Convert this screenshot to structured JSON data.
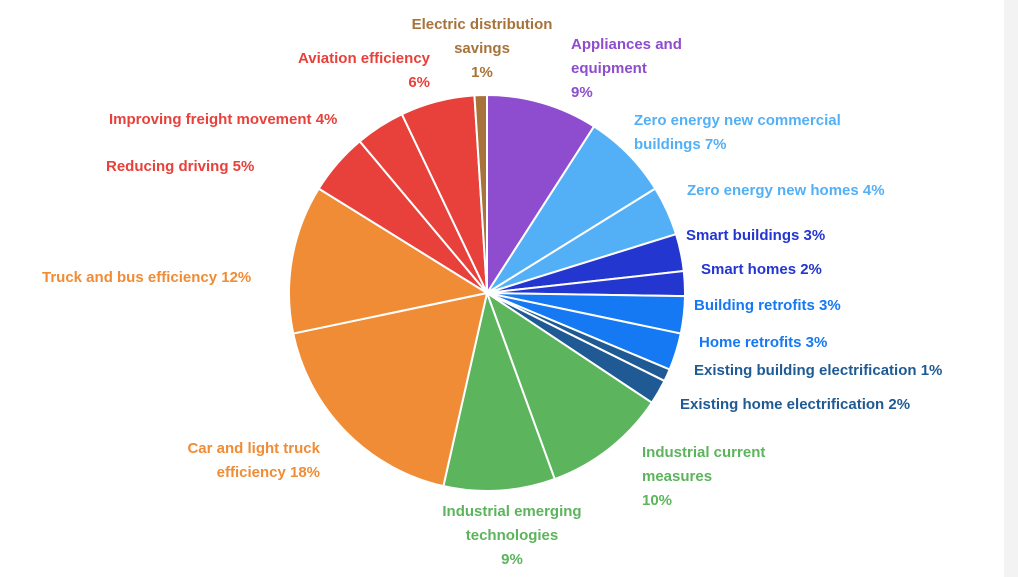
{
  "chart_data": {
    "type": "pie",
    "unit": "%",
    "slices": [
      {
        "label": "Appliances and\nequipment\n9%",
        "name": "Appliances and equipment",
        "value": 9,
        "color": "#8e4ccf"
      },
      {
        "label": "Zero energy new commercial\nbuildings 7%",
        "name": "Zero energy new commercial buildings",
        "value": 7,
        "color": "#53b0f6"
      },
      {
        "label": "Zero energy new homes 4%",
        "name": "Zero energy new homes",
        "value": 4,
        "color": "#53b0f6"
      },
      {
        "label": "Smart buildings 3%",
        "name": "Smart buildings",
        "value": 3,
        "color": "#2436d0"
      },
      {
        "label": "Smart homes 2%",
        "name": "Smart homes",
        "value": 2,
        "color": "#2436d0"
      },
      {
        "label": "Building retrofits 3%",
        "name": "Building retrofits",
        "value": 3,
        "color": "#1479f2"
      },
      {
        "label": "Home retrofits 3%",
        "name": "Home retrofits",
        "value": 3,
        "color": "#1479f2"
      },
      {
        "label": "Existing building electrification 1%",
        "name": "Existing building electrification",
        "value": 1,
        "color": "#1f5a94"
      },
      {
        "label": "Existing home electrification 2%",
        "name": "Existing home electrification",
        "value": 2,
        "color": "#1f5a94"
      },
      {
        "label": "Industrial current\nmeasures\n10%",
        "name": "Industrial current measures",
        "value": 10,
        "color": "#5cb45d"
      },
      {
        "label": "Industrial emerging\ntechnologies\n9%",
        "name": "Industrial emerging technologies",
        "value": 9,
        "color": "#5cb45d"
      },
      {
        "label": "Car and light truck\nefficiency 18%",
        "name": "Car and light truck efficiency",
        "value": 18,
        "color": "#f08c35"
      },
      {
        "label": "Truck and bus efficiency 12%",
        "name": "Truck and bus efficiency",
        "value": 12,
        "color": "#f08c35"
      },
      {
        "label": "Reducing driving 5%",
        "name": "Reducing driving",
        "value": 5,
        "color": "#e8403a"
      },
      {
        "label": "Improving freight movement 4%",
        "name": "Improving freight movement",
        "value": 4,
        "color": "#e8403a"
      },
      {
        "label": "Aviation efficiency\n6%",
        "name": "Aviation efficiency",
        "value": 6,
        "color": "#e8403a"
      },
      {
        "label": "Electric distribution\nsavings\n1%",
        "name": "Electric distribution savings",
        "value": 1,
        "color": "#a8733a"
      }
    ]
  }
}
